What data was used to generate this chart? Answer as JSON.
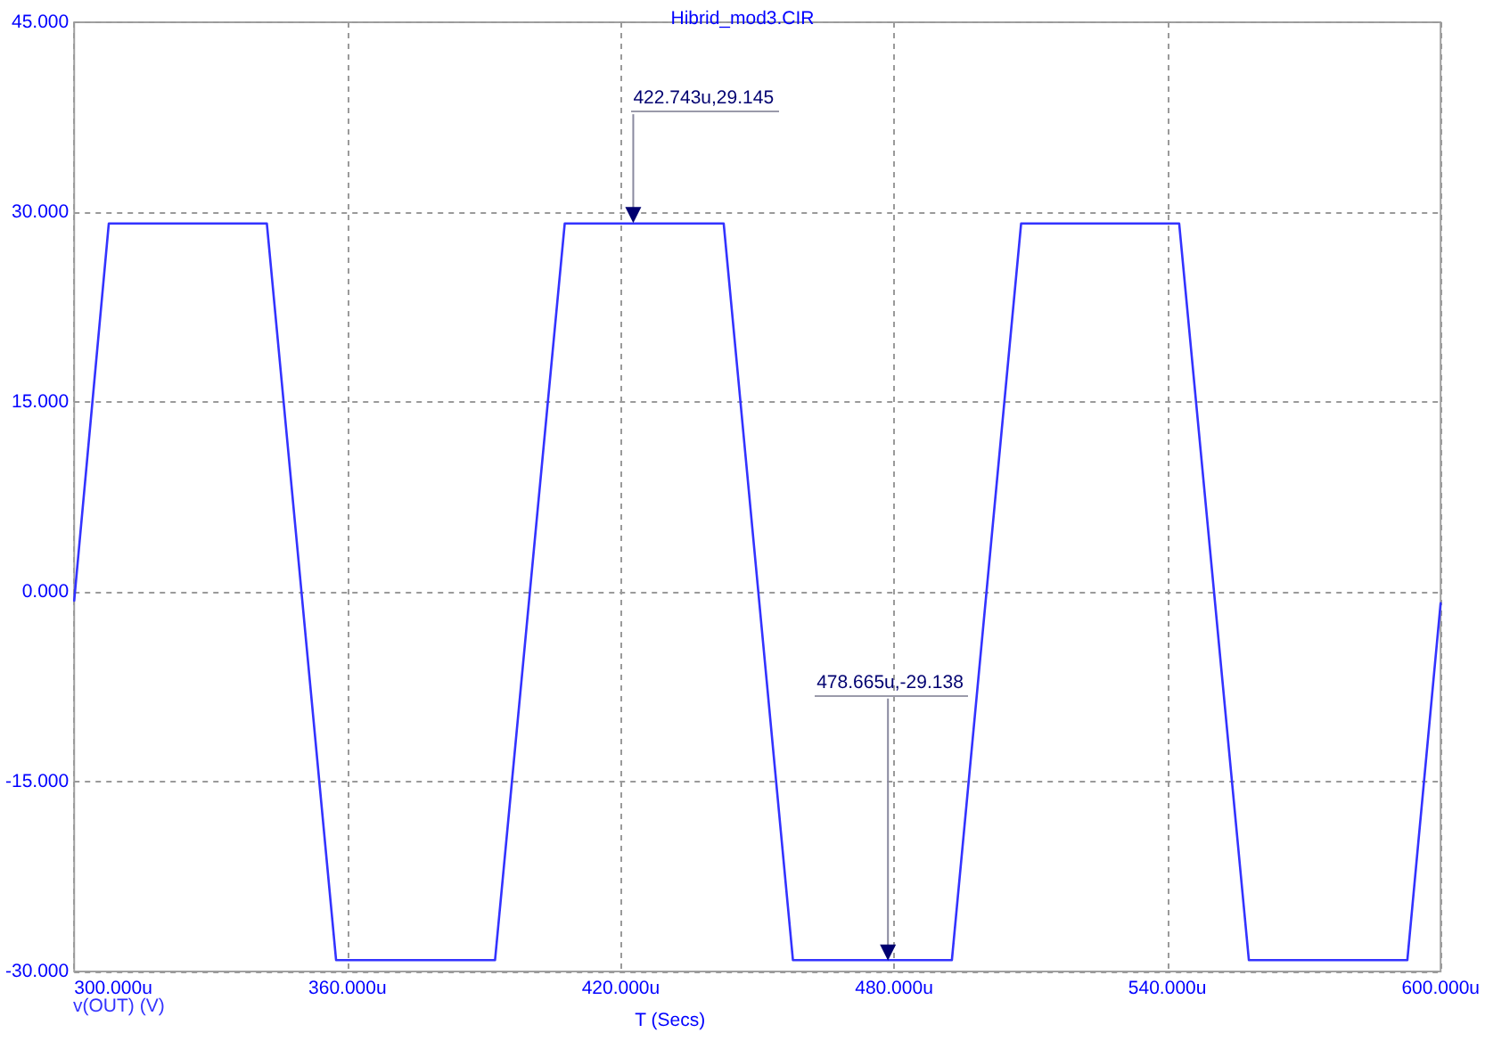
{
  "chart_data": {
    "type": "line",
    "title": "Hibrid_mod3.CIR",
    "xlabel": "T (Secs)",
    "x": [
      300,
      307.6,
      342.3,
      357.5,
      392.4,
      407.7,
      442.6,
      457.8,
      492.7,
      507.9,
      542.6,
      557.9,
      592.7,
      600
    ],
    "series": [
      {
        "name": "v(OUT) (V)",
        "color": "#3333ff",
        "values": [
          -0.7,
          29.1,
          29.1,
          -29.1,
          -29.1,
          29.1,
          29.1,
          -29.1,
          -29.1,
          29.1,
          29.1,
          -29.1,
          -29.1,
          -0.9
        ]
      }
    ],
    "xlim": [
      300,
      600
    ],
    "xticks": [
      {
        "value": 300,
        "label": "300.000u"
      },
      {
        "value": 360,
        "label": "360.000u"
      },
      {
        "value": 420,
        "label": "420.000u"
      },
      {
        "value": 480,
        "label": "480.000u"
      },
      {
        "value": 540,
        "label": "540.000u"
      },
      {
        "value": 600,
        "label": "600.000u"
      }
    ],
    "ylim": [
      -30,
      45
    ],
    "yticks": [
      {
        "value": -30,
        "label": "-30.000"
      },
      {
        "value": -15,
        "label": "-15.000"
      },
      {
        "value": 0,
        "label": "0.000"
      },
      {
        "value": 15,
        "label": "15.000"
      },
      {
        "value": 30,
        "label": "30.000"
      },
      {
        "value": 45,
        "label": "45.000"
      }
    ],
    "grid": true,
    "legend": "bottom left",
    "marker": "none",
    "line_style": "solid",
    "annotations": [
      {
        "text": "422.743u,29.145",
        "x": 422.743,
        "y": 29.145
      },
      {
        "text": "478.665u,-29.138",
        "x": 478.665,
        "y": -29.138
      }
    ]
  }
}
